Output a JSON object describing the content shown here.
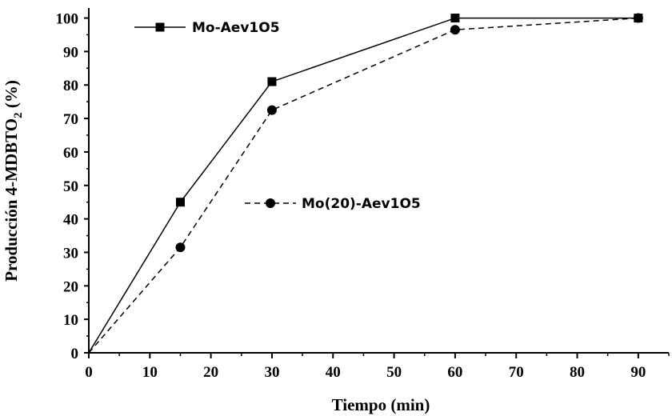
{
  "chart_data": {
    "type": "line",
    "title": "",
    "xlabel": "Tiempo (min)",
    "ylabel": {
      "main": "Producción 4-MDBTO",
      "subscript": "2",
      "suffix": " (%)"
    },
    "xlim": [
      0,
      95
    ],
    "ylim": [
      0,
      103
    ],
    "xticks": [
      0,
      10,
      20,
      30,
      40,
      50,
      60,
      70,
      80,
      90
    ],
    "yticks": [
      0,
      10,
      20,
      30,
      40,
      50,
      60,
      70,
      80,
      90,
      100
    ],
    "grid": false,
    "series": [
      {
        "name": "Mo-Aev1O5",
        "marker": "square",
        "line": "solid",
        "x": [
          0,
          15,
          30,
          60,
          90
        ],
        "y": [
          0,
          45,
          81,
          100,
          100
        ],
        "legend_position": "top-left"
      },
      {
        "name": "Mo(20)-Aev1O5",
        "marker": "circle",
        "line": "dashed",
        "x": [
          0,
          15,
          30,
          60,
          90
        ],
        "y": [
          0,
          31.5,
          72.5,
          96.5,
          100
        ],
        "legend_position": "center"
      }
    ]
  }
}
